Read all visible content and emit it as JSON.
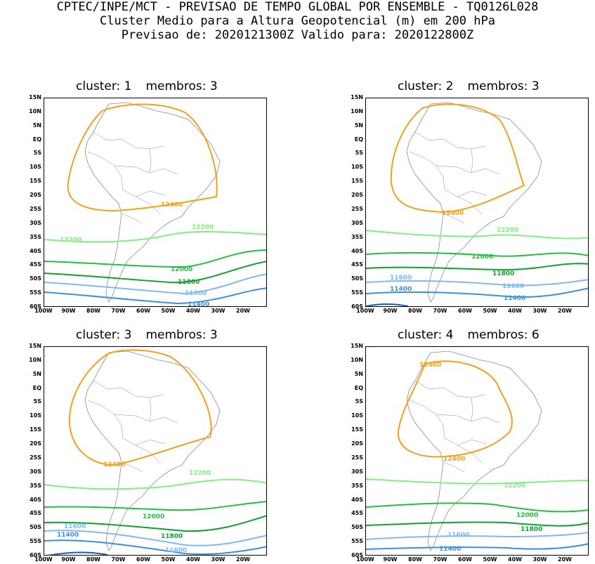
{
  "header": {
    "line1": "CPTEC/INPE/MCT - PREVISAO DE TEMPO GLOBAL POR ENSEMBLE - TQ0126L028",
    "line2": "Cluster Medio para a Altura Geopotencial (m) em 200 hPa",
    "line3": "Previsao de: 2020121300Z   Valido para: 2020122800Z"
  },
  "axes": {
    "lat_labels": [
      "15N",
      "10N",
      "5N",
      "EQ",
      "5S",
      "10S",
      "15S",
      "20S",
      "25S",
      "30S",
      "35S",
      "40S",
      "45S",
      "50S",
      "55S",
      "60S"
    ],
    "lon_labels": [
      "100W",
      "90W",
      "80W",
      "70W",
      "60W",
      "50W",
      "40W",
      "30W",
      "20W"
    ]
  },
  "colors": {
    "c12400": "#f5a01a",
    "c12200": "#80f080",
    "c12000": "#20c040",
    "c11800": "#10a030",
    "c11600": "#80b8f0",
    "c11400": "#3c90e0",
    "c11200": "#1060c0",
    "coast": "#8a8a8a"
  },
  "panels": [
    {
      "cluster_label": "cluster: 1",
      "members_label": "membros: 3",
      "labels": {
        "l12400": "12400",
        "l12200a": "12200",
        "l12200b": "12200",
        "l12000": "12000",
        "l11800": "11800",
        "l11600": "11600",
        "l11400": "11400"
      }
    },
    {
      "cluster_label": "cluster: 2",
      "members_label": "membros: 3",
      "labels": {
        "l12400": "12400",
        "l12200a": "12200",
        "l12000": "12000",
        "l11800": "11800",
        "l11600a": "11600",
        "l11600b": "11600",
        "l11400a": "11400",
        "l11400b": "11400"
      }
    },
    {
      "cluster_label": "cluster: 3",
      "members_label": "membros: 3",
      "labels": {
        "l12400": "12400",
        "l12200a": "12200",
        "l12000": "12000",
        "l11800": "11800",
        "l11600a": "11600",
        "l11600b": "11600",
        "l11400a": "11400"
      }
    },
    {
      "cluster_label": "cluster: 4",
      "members_label": "membros: 6",
      "labels": {
        "l12400a": "12400",
        "l12400b": "12400",
        "l12200a": "12200",
        "l12000": "12000",
        "l11800": "11800",
        "l11600a": "11600",
        "l11400a": "11400"
      }
    }
  ]
}
